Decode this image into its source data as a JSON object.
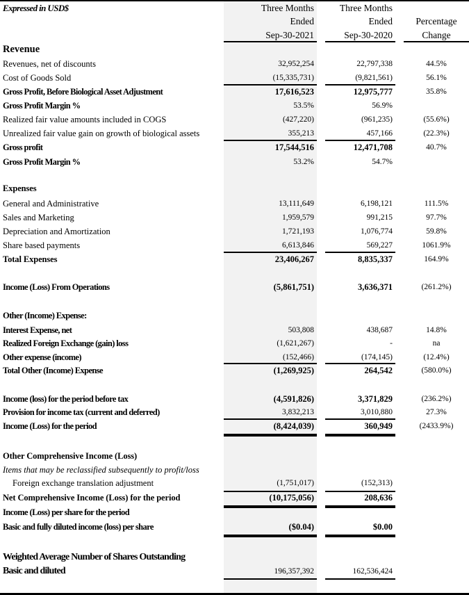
{
  "header": {
    "caption": "Expressed in USD$",
    "col1": [
      "Three  Months",
      "Ended",
      "Sep-30-2021"
    ],
    "col2": [
      "Three  Months",
      "Ended",
      "Sep-30-2020"
    ],
    "col3": [
      "Percentage",
      "Change"
    ]
  },
  "rows": [
    {
      "label": "Revenue",
      "style": "head"
    },
    {
      "label": "Revenues, net of discounts",
      "c1": "32,952,254",
      "c2": "22,797,338",
      "c3": "44.5%"
    },
    {
      "label": "Cost of Goods Sold",
      "c1": "(15,335,731)",
      "c2": "(9,821,561)",
      "c3": "56.1%"
    },
    {
      "label": "Gross Profit, Before Biological Asset Adjustment",
      "c1": "17,616,523",
      "c2": "12,975,777",
      "c3": "35.8%",
      "style": "bold",
      "numbold": true
    },
    {
      "label": "Gross Profit Margin %",
      "c1": "53.5%",
      "c2": "56.9%",
      "style": "bold"
    },
    {
      "label": "Realized fair value amounts included in COGS",
      "c1": "(427,220)",
      "c2": "(961,235)",
      "c3": "(55.6%)"
    },
    {
      "label": "Unrealized fair value gain on growth of biological assets",
      "c1": "355,213",
      "c2": "457,166",
      "c3": "(22.3%)"
    },
    {
      "label": "Gross profit",
      "c1": "17,544,516",
      "c2": "12,471,708",
      "c3": "40.7%",
      "style": "bold",
      "numbold": true
    },
    {
      "label": "Gross Profit Margin %",
      "c1": "53.2%",
      "c2": "54.7%",
      "style": "bold"
    },
    {
      "label": "Expenses",
      "style": "semi"
    },
    {
      "label": "General and Administrative",
      "c1": "13,111,649",
      "c2": "6,198,121",
      "c3": "111.5%"
    },
    {
      "label": "Sales and Marketing",
      "c1": "1,959,579",
      "c2": "991,215",
      "c3": "97.7%"
    },
    {
      "label": "Depreciation and Amortization",
      "c1": "1,721,193",
      "c2": "1,076,774",
      "c3": "59.8%"
    },
    {
      "label": "Share based payments",
      "c1": "6,613,846",
      "c2": "569,227",
      "c3": "1061.9%"
    },
    {
      "label": "Total Expenses",
      "c1": "23,406,267",
      "c2": "8,835,337",
      "c3": "164.9%",
      "style": "semi",
      "numbold": true
    },
    {
      "label": "Income (Loss) From Operations",
      "c1": "(5,861,751)",
      "c2": "3,636,371",
      "c3": "(261.2%)",
      "style": "bold",
      "numbold": true
    },
    {
      "label": "Other (Income) Expense:",
      "style": "bold"
    },
    {
      "label": "Interest Expense, net",
      "c1": "503,808",
      "c2": "438,687",
      "c3": "14.8%",
      "style": "bold"
    },
    {
      "label": "Realized Foreign Exchange (gain) loss",
      "c1": "(1,621,267)",
      "c2": "-",
      "c3": "na",
      "style": "bold"
    },
    {
      "label": "Other expense (income)",
      "c1": "(152,466)",
      "c2": "(174,145)",
      "c3": "(12.4%)",
      "style": "bold"
    },
    {
      "label": "Total Other (Income) Expense",
      "c1": "(1,269,925)",
      "c2": "264,542",
      "c3": "(580.0%)",
      "style": "bold",
      "numbold": true
    },
    {
      "label": "Income (loss) for the period before tax",
      "c1": "(4,591,826)",
      "c2": "3,371,829",
      "c3": "(236.2%)",
      "style": "bold",
      "numbold": true
    },
    {
      "label": "Provision for income tax (current and deferred)",
      "c1": "3,832,213",
      "c2": "3,010,880",
      "c3": "27.3%",
      "style": "bold"
    },
    {
      "label": "Income (Loss) for the period",
      "c1": "(8,424,039)",
      "c2": "360,949",
      "c3": "(2433.9%)",
      "style": "bold",
      "numbold": true
    },
    {
      "label": "Other Comprehensive Income (Loss)",
      "style": "semi"
    },
    {
      "label": "Items that may be reclassified subsequently to profit/loss",
      "style": "italic"
    },
    {
      "label": "Foreign exchange translation adjustment",
      "c1": "(1,751,017)",
      "c2": "(152,313)",
      "style": "indent"
    },
    {
      "label": "Net Comprehensive Income (Loss) for the period",
      "c1": "(10,175,056)",
      "c2": "208,636",
      "style": "semi",
      "numbold": true
    },
    {
      "label": "Income (Loss) per share for the period",
      "style": "bold"
    },
    {
      "label": "Basic and fully diluted income (loss) per share",
      "c1": "($0.04)",
      "c2": "$0.00",
      "style": "bold",
      "numbold": true
    },
    {
      "label": "Weighted Average Number of Shares Outstanding",
      "style": "big"
    },
    {
      "label": "Basic and diluted",
      "c1": "196,357,392",
      "c2": "162,536,424",
      "style": "big"
    }
  ]
}
